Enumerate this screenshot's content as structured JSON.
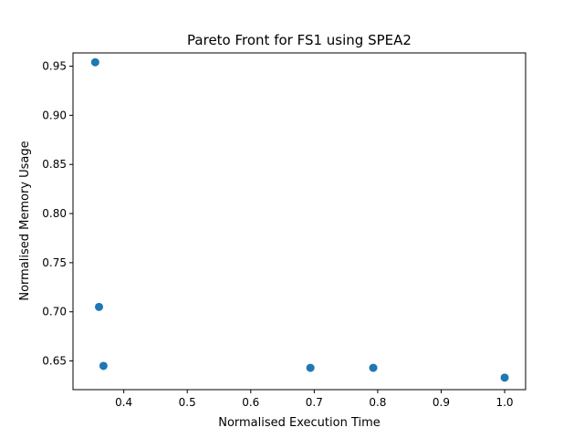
{
  "chart_data": {
    "type": "scatter",
    "title": "Pareto Front for FS1 using SPEA2",
    "xlabel": "Normalised Execution Time",
    "ylabel": "Normalised Memory Usage",
    "xlim": [
      0.32,
      1.033
    ],
    "ylim": [
      0.6208,
      0.9635
    ],
    "xticks": [
      "0.4",
      "0.5",
      "0.6",
      "0.7",
      "0.8",
      "0.9",
      "1.0"
    ],
    "yticks": [
      "0.65",
      "0.70",
      "0.75",
      "0.80",
      "0.85",
      "0.90",
      "0.95"
    ],
    "grid": false,
    "point_color": "#1f77b4",
    "points": [
      {
        "x": 0.355,
        "y": 0.954
      },
      {
        "x": 0.361,
        "y": 0.705
      },
      {
        "x": 0.368,
        "y": 0.645
      },
      {
        "x": 0.694,
        "y": 0.643
      },
      {
        "x": 0.793,
        "y": 0.643
      },
      {
        "x": 1.0,
        "y": 0.633
      }
    ]
  }
}
